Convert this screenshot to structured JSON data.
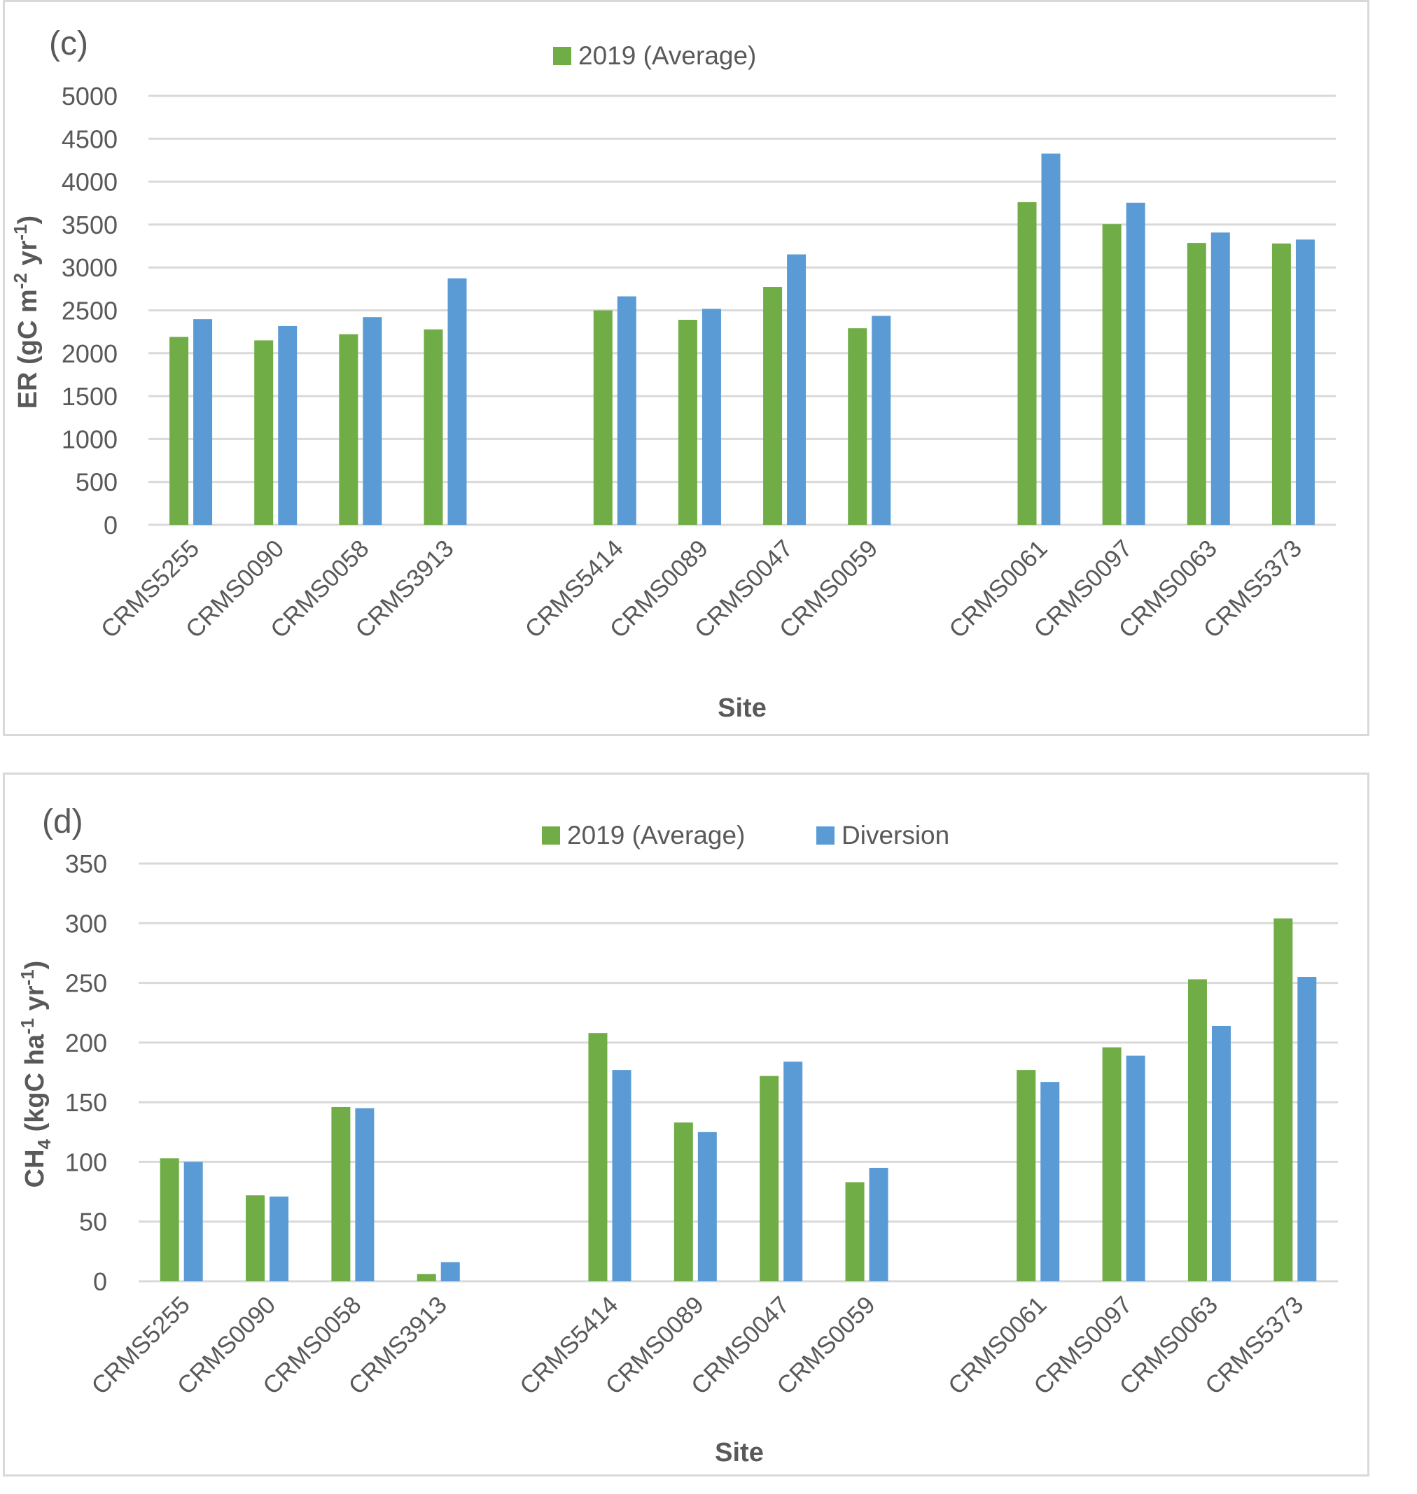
{
  "colors": {
    "average": "#70AD47",
    "diversion": "#5B9BD5",
    "grid": "#D9D9D9",
    "text": "#595959"
  },
  "chart_data": [
    {
      "type": "bar",
      "panel_label": "(c)",
      "title": "",
      "xlabel": "Site",
      "ylabel": "ER (gC m-2 yr-1)",
      "ylabel_parts": {
        "main": "ER (gC m",
        "sup1": "-2",
        "mid": " yr",
        "sup2": "-1",
        "end": ")"
      },
      "ylim": [
        0,
        5000
      ],
      "yticks": [
        0,
        500,
        1000,
        1500,
        2000,
        2500,
        3000,
        3500,
        4000,
        4500,
        5000
      ],
      "grid": true,
      "legend_position": "top-center",
      "legend_entries": [
        "2019 (Average)"
      ],
      "categories": [
        "CRMS5255",
        "CRMS0090",
        "CRMS0058",
        "CRMS3913",
        "",
        "CRMS5414",
        "CRMS0089",
        "CRMS0047",
        "CRMS0059",
        "",
        "CRMS0061",
        "CRMS0097",
        "CRMS0063",
        "CRMS5373"
      ],
      "series": [
        {
          "name": "2019 (Average)",
          "color_key": "average",
          "values": [
            2190,
            2150,
            2222,
            2278,
            null,
            2500,
            2390,
            2773,
            2291,
            null,
            3761,
            3506,
            3286,
            3279
          ]
        },
        {
          "name": "Diversion",
          "color_key": "diversion",
          "values": [
            2397,
            2317,
            2421,
            2873,
            null,
            2663,
            2518,
            3152,
            2436,
            null,
            4327,
            3754,
            3407,
            3325
          ]
        }
      ]
    },
    {
      "type": "bar",
      "panel_label": "(d)",
      "title": "",
      "xlabel": "Site",
      "ylabel": "CH4 (kgC ha-1 yr-1)",
      "ylabel_parts": {
        "main": "CH",
        "sub": "4",
        "main2": " (kgC ha",
        "sup1": "-1",
        "mid": " yr",
        "sup2": "-1",
        "end": ")"
      },
      "ylim": [
        0,
        350
      ],
      "yticks": [
        0,
        50,
        100,
        150,
        200,
        250,
        300,
        350
      ],
      "grid": true,
      "legend_position": "top-center",
      "legend_entries": [
        "2019 (Average)",
        "Diversion"
      ],
      "categories": [
        "CRMS5255",
        "CRMS0090",
        "CRMS0058",
        "CRMS3913",
        "",
        "CRMS5414",
        "CRMS0089",
        "CRMS0047",
        "CRMS0059",
        "",
        "CRMS0061",
        "CRMS0097",
        "CRMS0063",
        "CRMS5373"
      ],
      "series": [
        {
          "name": "2019 (Average)",
          "color_key": "average",
          "values": [
            103,
            72,
            146,
            6,
            null,
            208,
            133,
            172,
            83,
            null,
            177,
            196,
            253,
            304
          ]
        },
        {
          "name": "Diversion",
          "color_key": "diversion",
          "values": [
            100,
            71,
            145,
            16,
            null,
            177,
            125,
            184,
            95,
            null,
            167,
            189,
            214,
            255
          ]
        }
      ]
    }
  ]
}
